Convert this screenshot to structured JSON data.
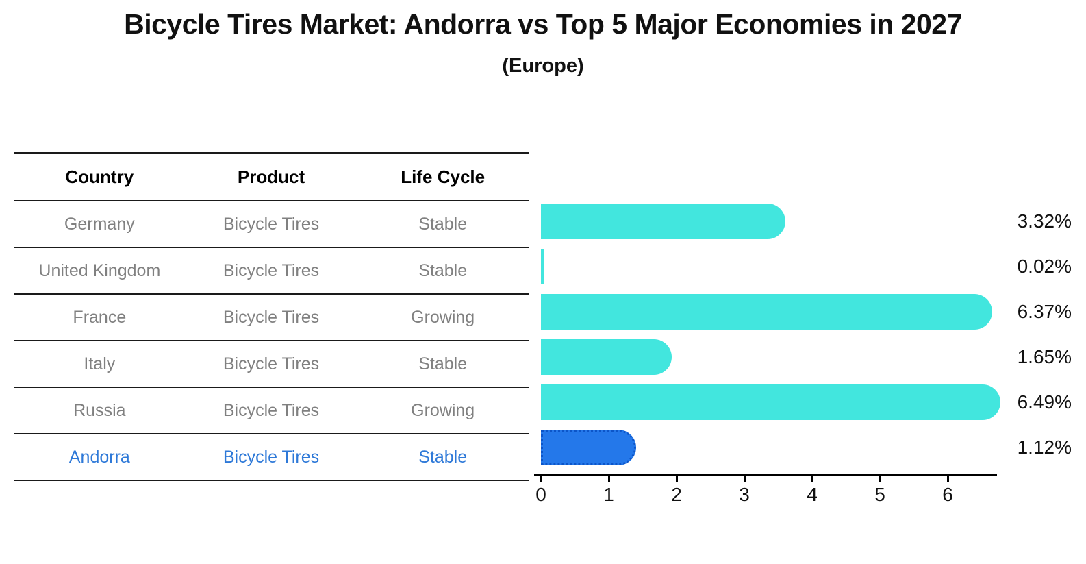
{
  "title": "Bicycle Tires Market: Andorra vs Top 5 Major Economies in 2027",
  "subtitle": "(Europe)",
  "table": {
    "headers": [
      "Country",
      "Product",
      "Life Cycle"
    ],
    "rows": [
      {
        "country": "Germany",
        "product": "Bicycle Tires",
        "life_cycle": "Stable",
        "highlight": false
      },
      {
        "country": "United Kingdom",
        "product": "Bicycle Tires",
        "life_cycle": "Stable",
        "highlight": false
      },
      {
        "country": "France",
        "product": "Bicycle Tires",
        "life_cycle": "Growing",
        "highlight": false
      },
      {
        "country": "Italy",
        "product": "Bicycle Tires",
        "life_cycle": "Stable",
        "highlight": false
      },
      {
        "country": "Russia",
        "product": "Bicycle Tires",
        "life_cycle": "Growing",
        "highlight": false
      },
      {
        "country": "Andorra",
        "product": "Bicycle Tires",
        "life_cycle": "Stable",
        "highlight": true
      }
    ]
  },
  "chart_data": {
    "type": "bar",
    "orientation": "horizontal",
    "title": "Bicycle Tires Market: Andorra vs Top 5 Major Economies in 2027",
    "subtitle": "(Europe)",
    "categories": [
      "Germany",
      "United Kingdom",
      "France",
      "Italy",
      "Russia",
      "Andorra"
    ],
    "values": [
      3.32,
      0.02,
      6.37,
      1.65,
      6.49,
      1.12
    ],
    "value_labels": [
      "3.32%",
      "0.02%",
      "6.37%",
      "1.65%",
      "6.49%",
      "1.12%"
    ],
    "unit": "%",
    "x_ticks": [
      0,
      1,
      2,
      3,
      4,
      5,
      6
    ],
    "xlim": [
      0,
      6.8
    ],
    "grid": false,
    "legend": "none",
    "highlight_index": 5,
    "bar_color": "#42E6DE",
    "highlight_bar_color": "#2478EA",
    "highlight_border_color": "#0C55C8",
    "highlight_text_color": "#2E79D8",
    "row_text_color": "#808080",
    "axis_color": "#000000"
  }
}
